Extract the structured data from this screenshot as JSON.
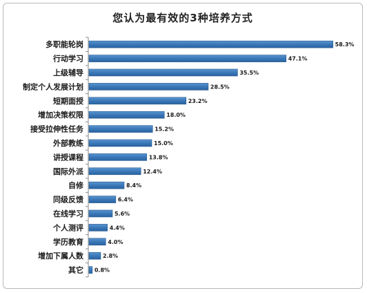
{
  "chart_data": {
    "type": "bar",
    "orientation": "horizontal",
    "title": "您认为最有效的3种培养方式",
    "categories": [
      "多职能轮岗",
      "行动学习",
      "上级辅导",
      "制定个人发展计划",
      "短期面授",
      "增加决策权限",
      "接受拉伸性任务",
      "外部教练",
      "讲授课程",
      "国际外派",
      "自修",
      "同级反馈",
      "在线学习",
      "个人测评",
      "学历教育",
      "增加下属人数",
      "其它"
    ],
    "values": [
      58.3,
      47.1,
      35.5,
      28.5,
      23.2,
      18.0,
      15.2,
      15.0,
      13.8,
      12.4,
      8.4,
      6.4,
      5.6,
      4.4,
      4.0,
      2.8,
      0.8
    ],
    "value_labels": [
      "58.3%",
      "47.1%",
      "35.5%",
      "28.5%",
      "23.2%",
      "18.0%",
      "15.2%",
      "15.0%",
      "13.8%",
      "12.4%",
      "8.4%",
      "6.4%",
      "5.6%",
      "4.4%",
      "4.0%",
      "2.8%",
      "0.8%"
    ],
    "xlim": [
      0,
      60
    ],
    "grid": false,
    "legend": "none",
    "bar_color": "#3a78b8",
    "bar_edge_color": "#245a8f"
  }
}
